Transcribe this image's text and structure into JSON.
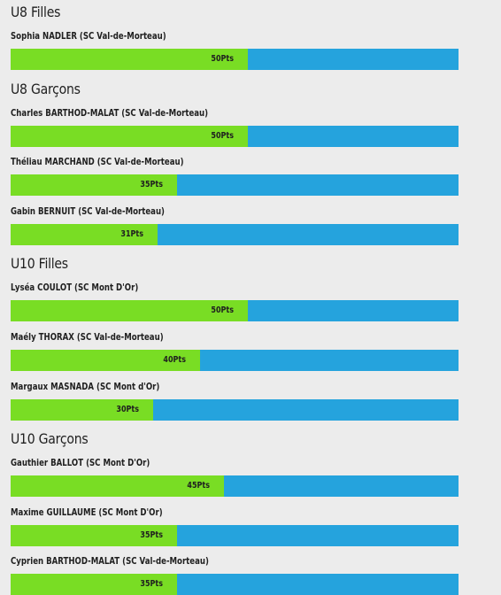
{
  "max_points": 50,
  "categories": [
    {
      "title": "U8 Filles",
      "entries": [
        {
          "name": "Sophia NADLER (SC Val-de-Morteau)",
          "points": 50,
          "points_label": "50Pts"
        }
      ]
    },
    {
      "title": "U8 Garçons",
      "entries": [
        {
          "name": "Charles BARTHOD-MALAT (SC Val-de-Morteau)",
          "points": 50,
          "points_label": "50Pts"
        },
        {
          "name": "Théliau MARCHAND (SC Val-de-Morteau)",
          "points": 35,
          "points_label": "35Pts"
        },
        {
          "name": "Gabin BERNUIT (SC Val-de-Morteau)",
          "points": 31,
          "points_label": "31Pts"
        }
      ]
    },
    {
      "title": "U10 Filles",
      "entries": [
        {
          "name": "Lyséa COULOT (SC Mont D'Or)",
          "points": 50,
          "points_label": "50Pts"
        },
        {
          "name": "Maély THORAX (SC Val-de-Morteau)",
          "points": 40,
          "points_label": "40Pts"
        },
        {
          "name": "Margaux MASNADA (SC Mont d'Or)",
          "points": 30,
          "points_label": "30Pts"
        }
      ]
    },
    {
      "title": "U10 Garçons",
      "entries": [
        {
          "name": "Gauthier BALLOT (SC Mont D'Or)",
          "points": 45,
          "points_label": "45Pts"
        },
        {
          "name": "Maxime GUILLAUME (SC Mont D'Or)",
          "points": 35,
          "points_label": "35Pts"
        },
        {
          "name": "Cyprien BARTHOD-MALAT (SC Val-de-Morteau)",
          "points": 35,
          "points_label": "35Pts"
        }
      ]
    }
  ]
}
